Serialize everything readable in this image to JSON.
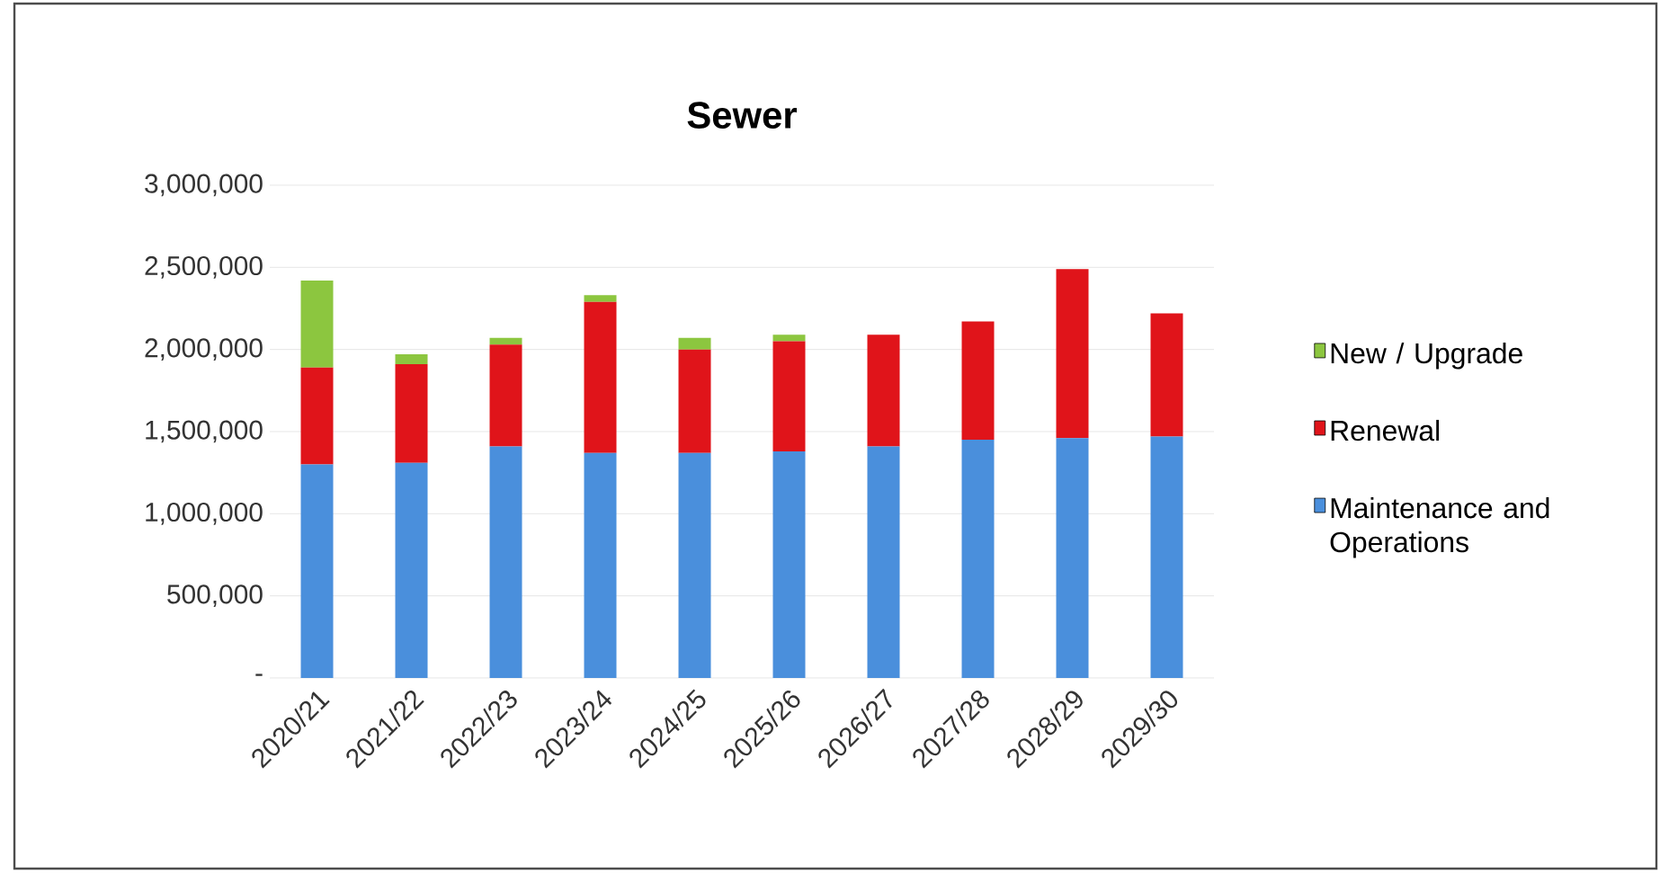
{
  "chart_data": {
    "type": "bar",
    "title": "Sewer",
    "stacked": true,
    "grid": "y",
    "legend": "right",
    "categories": [
      "2020/21",
      "2021/22",
      "2022/23",
      "2023/24",
      "2024/25",
      "2025/26",
      "2026/27",
      "2027/28",
      "2028/29",
      "2029/30"
    ],
    "series": [
      {
        "name": "Maintenance and Operations",
        "color": "#4a8fdc",
        "values": [
          1300000,
          1310000,
          1410000,
          1370000,
          1370000,
          1380000,
          1410000,
          1450000,
          1460000,
          1470000
        ]
      },
      {
        "name": "Renewal",
        "color": "#e0141a",
        "values": [
          590000,
          600000,
          620000,
          920000,
          630000,
          670000,
          680000,
          720000,
          1030000,
          750000
        ]
      },
      {
        "name": "New / Upgrade",
        "color": "#8cc63f",
        "values": [
          530000,
          60000,
          40000,
          40000,
          70000,
          40000,
          0,
          0,
          0,
          0
        ]
      }
    ],
    "ylim": [
      0,
      3000000
    ],
    "yticks": [
      {
        "value": 0,
        "label": "-"
      },
      {
        "value": 500000,
        "label": "500,000"
      },
      {
        "value": 1000000,
        "label": "1,000,000"
      },
      {
        "value": 1500000,
        "label": "1,500,000"
      },
      {
        "value": 2000000,
        "label": "2,000,000"
      },
      {
        "value": 2500000,
        "label": "2,500,000"
      },
      {
        "value": 3000000,
        "label": "3,000,000"
      }
    ]
  }
}
